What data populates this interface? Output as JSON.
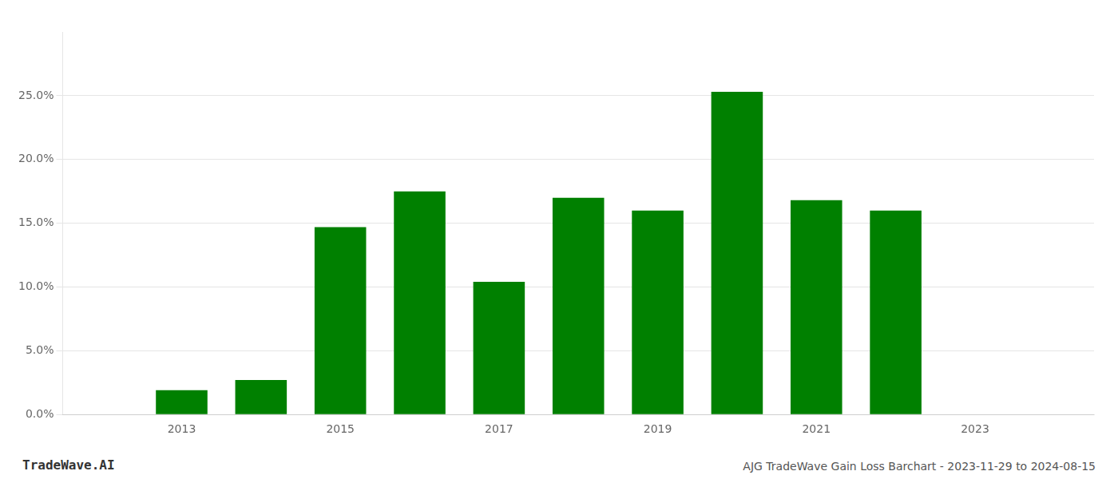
{
  "chart_data": {
    "type": "bar",
    "x": [
      2013,
      2014,
      2015,
      2016,
      2017,
      2018,
      2019,
      2020,
      2021,
      2022,
      2023
    ],
    "values": [
      0.019,
      0.027,
      0.147,
      0.175,
      0.104,
      0.17,
      0.16,
      0.253,
      0.168,
      0.16,
      0.0
    ],
    "color": "#008000",
    "xlim": [
      2011.5,
      2024.5
    ],
    "xticks": [
      2013,
      2015,
      2017,
      2019,
      2021,
      2023
    ],
    "ylim": [
      0,
      0.3
    ],
    "yticks": [
      {
        "value": 0.0,
        "label": "0.0%"
      },
      {
        "value": 0.05,
        "label": "5.0%"
      },
      {
        "value": 0.1,
        "label": "10.0%"
      },
      {
        "value": 0.15,
        "label": "15.0%"
      },
      {
        "value": 0.2,
        "label": "20.0%"
      },
      {
        "value": 0.25,
        "label": "25.0%"
      }
    ],
    "grid": "y",
    "annotations": [
      "TradeWave.AI",
      "AJG TradeWave Gain Loss Barchart - 2023-11-29 to 2024-08-15"
    ]
  }
}
